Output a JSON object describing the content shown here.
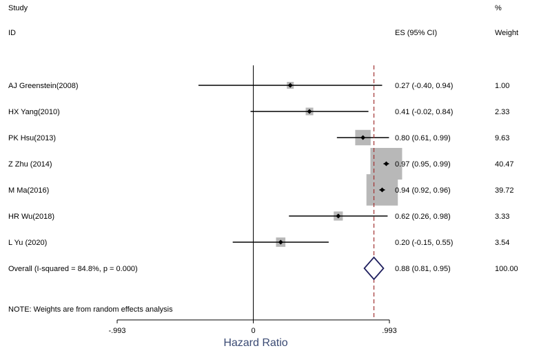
{
  "chart_data": {
    "type": "forest",
    "headers": {
      "study_line1": "Study",
      "study_line2": "ID",
      "es": "ES (95% CI)",
      "weight_line1": "%",
      "weight_line2": "Weight"
    },
    "studies": [
      {
        "id": "AJ Greenstein(2008)",
        "es": 0.27,
        "lo": -0.4,
        "hi": 0.94,
        "es_label": "0.27 (-0.40, 0.94)",
        "weight": 1.0,
        "weight_label": "1.00"
      },
      {
        "id": "HX Yang(2010)",
        "es": 0.41,
        "lo": -0.02,
        "hi": 0.84,
        "es_label": "0.41 (-0.02, 0.84)",
        "weight": 2.33,
        "weight_label": "2.33"
      },
      {
        "id": "PK Hsu(2013)",
        "es": 0.8,
        "lo": 0.61,
        "hi": 0.99,
        "es_label": "0.80 (0.61, 0.99)",
        "weight": 9.63,
        "weight_label": "9.63"
      },
      {
        "id": "Z Zhu (2014)",
        "es": 0.97,
        "lo": 0.95,
        "hi": 0.99,
        "es_label": "0.97 (0.95, 0.99)",
        "weight": 40.47,
        "weight_label": "40.47"
      },
      {
        "id": "M Ma(2016)",
        "es": 0.94,
        "lo": 0.92,
        "hi": 0.96,
        "es_label": "0.94 (0.92, 0.96)",
        "weight": 39.72,
        "weight_label": "39.72"
      },
      {
        "id": "HR Wu(2018)",
        "es": 0.62,
        "lo": 0.26,
        "hi": 0.98,
        "es_label": "0.62 (0.26, 0.98)",
        "weight": 3.33,
        "weight_label": "3.33"
      },
      {
        "id": "L Yu (2020)",
        "es": 0.2,
        "lo": -0.15,
        "hi": 0.55,
        "es_label": "0.20 (-0.15, 0.55)",
        "weight": 3.54,
        "weight_label": "3.54"
      }
    ],
    "overall": {
      "label": "Overall  (I-squared = 84.8%, p = 0.000)",
      "es": 0.88,
      "lo": 0.81,
      "hi": 0.95,
      "es_label": "0.88 (0.81, 0.95)",
      "weight_label": "100.00"
    },
    "note": "NOTE: Weights are from random effects analysis",
    "x_axis": {
      "title": "Hazard Ratio",
      "range": [
        -0.993,
        0.993
      ],
      "null_value": 0,
      "ticks": [
        {
          "value": -0.993,
          "label": "-.993"
        },
        {
          "value": 0,
          "label": "0"
        },
        {
          "value": 0.993,
          "label": ".993"
        }
      ]
    },
    "colors": {
      "box": "#b8b8b8",
      "ci_line": "#000000",
      "overall_diamond": "#1f1f5e",
      "overall_line": "#a03030"
    }
  }
}
